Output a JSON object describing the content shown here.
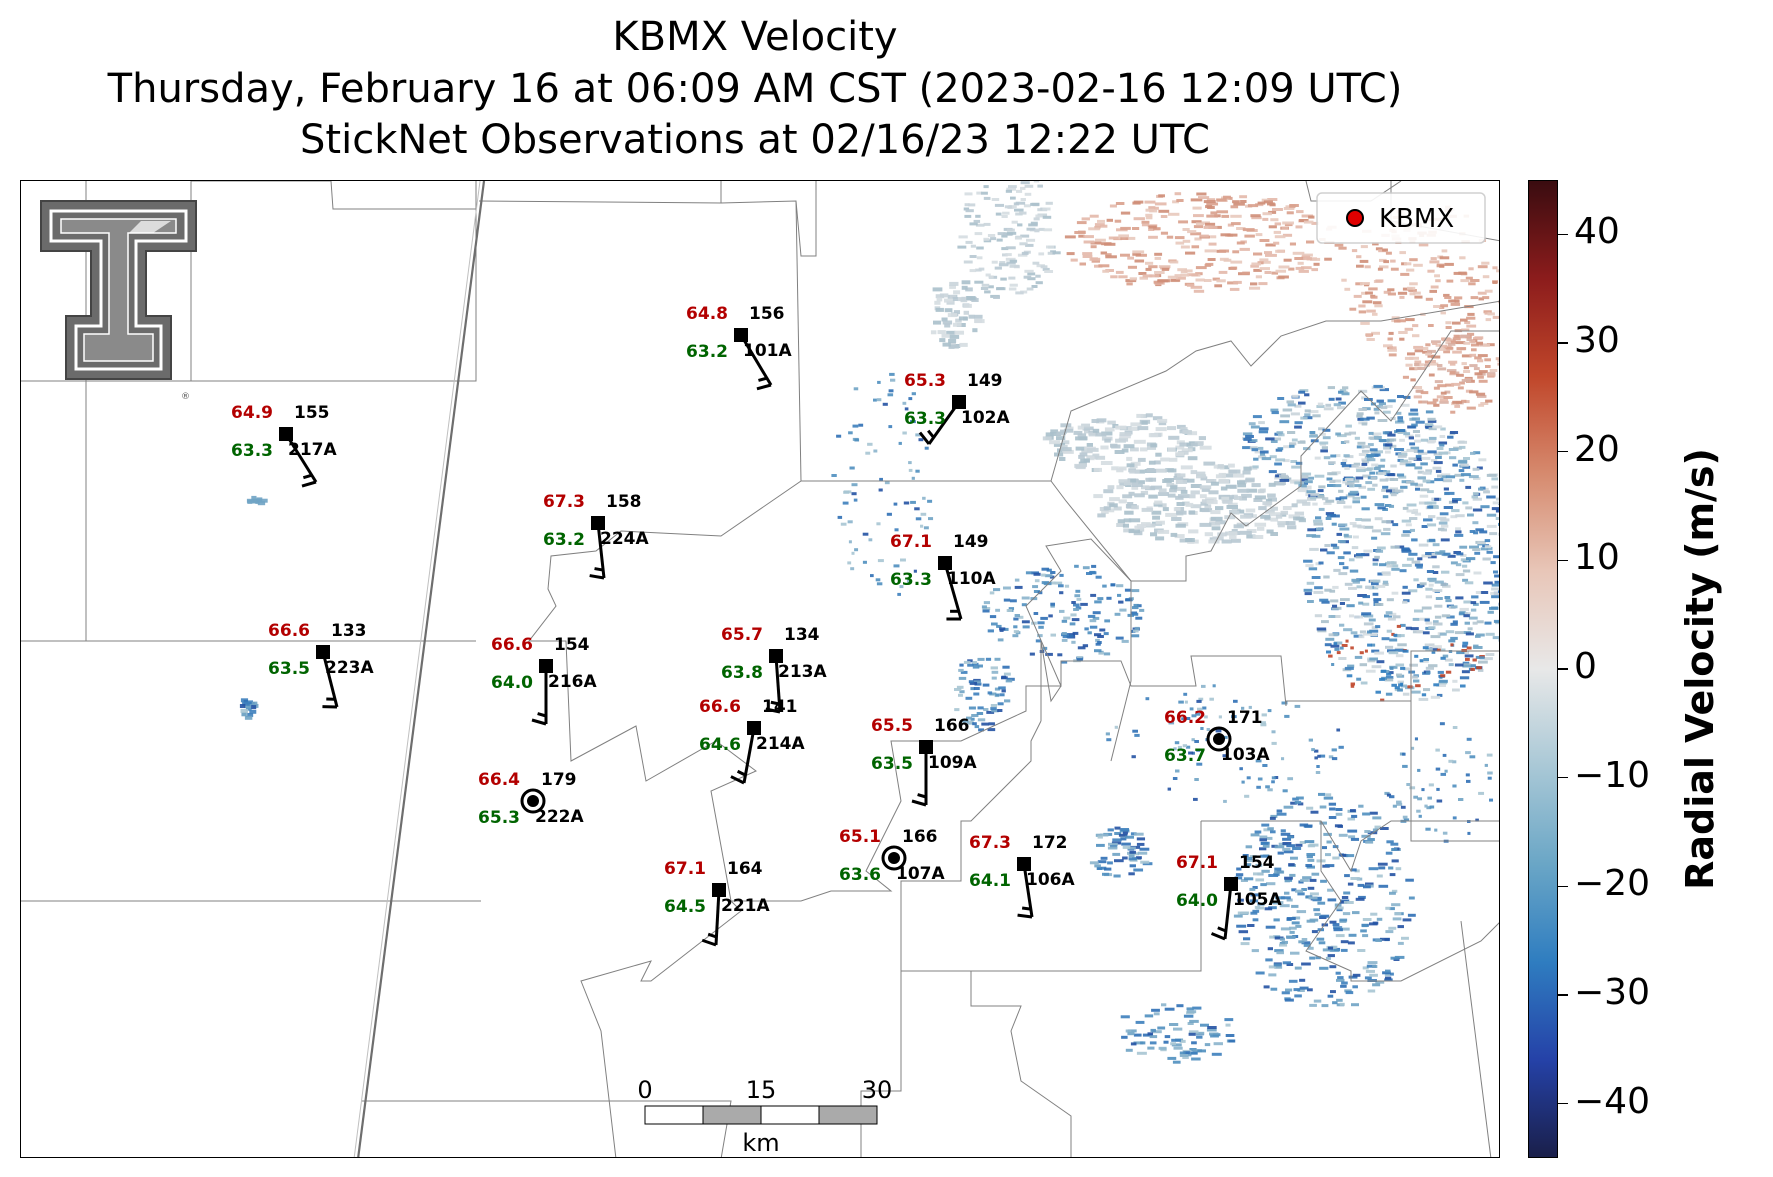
{
  "title": {
    "line1": "KBMX Velocity",
    "line2": "Thursday, February 16 at 06:09 AM CST (2023-02-16 12:09 UTC)",
    "line3": "StickNet Observations at 02/16/23 12:22 UTC"
  },
  "legend": {
    "label": "KBMX",
    "marker_color": "#e00000"
  },
  "colorbar": {
    "title": "Radial Velocity (m/s)",
    "range": [
      -45,
      45
    ],
    "ticks": [
      "40",
      "30",
      "20",
      "10",
      "0",
      "−10",
      "−20",
      "−30",
      "−40"
    ],
    "tick_values": [
      40,
      30,
      20,
      10,
      0,
      -10,
      -20,
      -30,
      -40
    ],
    "colors": [
      "#1a1f4a",
      "#2542a8",
      "#2f7dc0",
      "#6aa6c6",
      "#a9c8d6",
      "#e8e8e8",
      "#e8c6b8",
      "#d68a6e",
      "#c0462a",
      "#8c1c1c",
      "#3a0c10"
    ]
  },
  "scale_bar": {
    "labels": [
      "0",
      "15",
      "30"
    ],
    "unit": "km"
  },
  "logo": {
    "name": "Texas Tech Double T"
  },
  "colors": {
    "temperature": "#b30000",
    "dewpoint": "#006400",
    "station_id": "#000000"
  },
  "stations": [
    {
      "id": "101A",
      "temp": "64.8",
      "dew": "63.2",
      "val": "156",
      "marker": "square"
    },
    {
      "id": "102A",
      "temp": "65.3",
      "dew": "63.3",
      "val": "149",
      "marker": "square"
    },
    {
      "id": "217A",
      "temp": "64.9",
      "dew": "63.3",
      "val": "155",
      "marker": "square"
    },
    {
      "id": "224A",
      "temp": "67.3",
      "dew": "63.2",
      "val": "158",
      "marker": "square"
    },
    {
      "id": "110A",
      "temp": "67.1",
      "dew": "63.3",
      "val": "149",
      "marker": "square"
    },
    {
      "id": "223A",
      "temp": "66.6",
      "dew": "63.5",
      "val": "133",
      "marker": "square"
    },
    {
      "id": "216A",
      "temp": "66.6",
      "dew": "64.0",
      "val": "154",
      "marker": "square"
    },
    {
      "id": "213A",
      "temp": "65.7",
      "dew": "63.8",
      "val": "134",
      "marker": "square"
    },
    {
      "id": "214A",
      "temp": "66.6",
      "dew": "64.6",
      "val": "141",
      "marker": "square"
    },
    {
      "id": "109A",
      "temp": "65.5",
      "dew": "63.5",
      "val": "166",
      "marker": "square"
    },
    {
      "id": "103A",
      "temp": "66.2",
      "dew": "63.7",
      "val": "171",
      "marker": "calm"
    },
    {
      "id": "222A",
      "temp": "66.4",
      "dew": "65.3",
      "val": "179",
      "marker": "calm"
    },
    {
      "id": "107A",
      "temp": "65.1",
      "dew": "63.6",
      "val": "166",
      "marker": "calm"
    },
    {
      "id": "106A",
      "temp": "67.3",
      "dew": "64.1",
      "val": "172",
      "marker": "square"
    },
    {
      "id": "221A",
      "temp": "67.1",
      "dew": "64.5",
      "val": "164",
      "marker": "square"
    },
    {
      "id": "105A",
      "temp": "67.1",
      "dew": "64.0",
      "val": "154",
      "marker": "square"
    }
  ]
}
